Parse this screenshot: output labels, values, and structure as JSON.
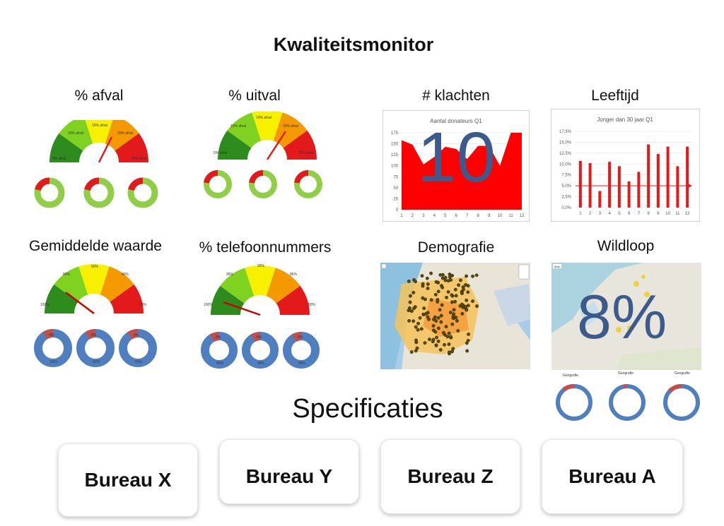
{
  "page": {
    "title": "Kwaliteitsmonitor",
    "spec_title": "Specificaties"
  },
  "colors": {
    "dark_green": "#2e8b1e",
    "green": "#7fd320",
    "yellow": "#f7f000",
    "orange": "#f49a00",
    "red": "#e31a1c",
    "donut_green": "#8fce46",
    "donut_blue": "#4f7fbf",
    "donut_red": "#c0504d",
    "chart_red": "#ff0000",
    "big_number": "#3c5a8c"
  },
  "widgets": {
    "afval": {
      "title": "% afval",
      "gauge_labels": [
        "5% afval",
        "10% afval",
        "15% afval",
        "20% afval",
        "25% afval"
      ],
      "gauge_needle": "afval-needle-icon"
    },
    "uitval": {
      "title": "% uitval",
      "gauge_labels": [
        "5% afval",
        "10% afval",
        "15% afval",
        "20% afval",
        "25% afval"
      ]
    },
    "klachten": {
      "title": "# klachten",
      "big_value": "10"
    },
    "leeftijd": {
      "title": "Leeftijd"
    },
    "gemiddelde": {
      "title": "Gemiddelde  waarde",
      "gauge_labels": [
        "100%",
        "80%",
        "60%",
        "40%",
        "20%"
      ],
      "donut_labels": [
        "9%",
        "9%",
        "9%"
      ],
      "donut_inner": [
        "91%",
        "91%",
        "91%"
      ]
    },
    "telefoon": {
      "title": "% telefoonnummers",
      "gauge_labels": [
        "100%",
        "95%",
        "90%",
        "85%",
        "80%"
      ],
      "donut_labels": [
        "8%",
        "8%",
        "8%"
      ],
      "donut_inner": [
        "92%",
        "92%",
        "92%"
      ]
    },
    "demografie": {
      "title": "Demografie"
    },
    "wildloop": {
      "title": "Wildloop",
      "big_value": "8%",
      "map_tab": "Map",
      "donut_titles": [
        "Geografie",
        "Geografie",
        "Geografie"
      ]
    }
  },
  "chart_data": [
    {
      "type": "area",
      "title": "Aantal donateurs Q1",
      "categories": [
        "1",
        "2",
        "3",
        "4",
        "5",
        "6",
        "7",
        "8",
        "9",
        "10",
        "11",
        "12"
      ],
      "values": [
        158,
        148,
        103,
        120,
        143,
        138,
        115,
        145,
        145,
        100,
        175,
        175
      ],
      "yticks": [
        "0",
        "25",
        "50",
        "75",
        "100",
        "125",
        "150",
        "175"
      ],
      "ylim": [
        0,
        175
      ],
      "grid": true
    },
    {
      "type": "bar",
      "title": "Jonger dan 30 jaar Q1",
      "categories": [
        "1",
        "2",
        "3",
        "4",
        "5",
        "6",
        "7",
        "8",
        "9",
        "10",
        "11",
        "12"
      ],
      "values": [
        10.7,
        10.2,
        3.8,
        10.5,
        9.5,
        6.0,
        8.2,
        14.5,
        12.3,
        14.0,
        9.5,
        14.0
      ],
      "reference": 5.0,
      "yticks": [
        "0,0%",
        "2,5%",
        "5,0%",
        "7,5%",
        "10,0%",
        "12,5%",
        "15,0%",
        "17,5%"
      ],
      "ylim": [
        0,
        17.5
      ],
      "grid": true
    }
  ],
  "bureaus": [
    {
      "label": "Bureau X"
    },
    {
      "label": "Bureau Y"
    },
    {
      "label": "Bureau Z"
    },
    {
      "label": "Bureau A"
    }
  ]
}
